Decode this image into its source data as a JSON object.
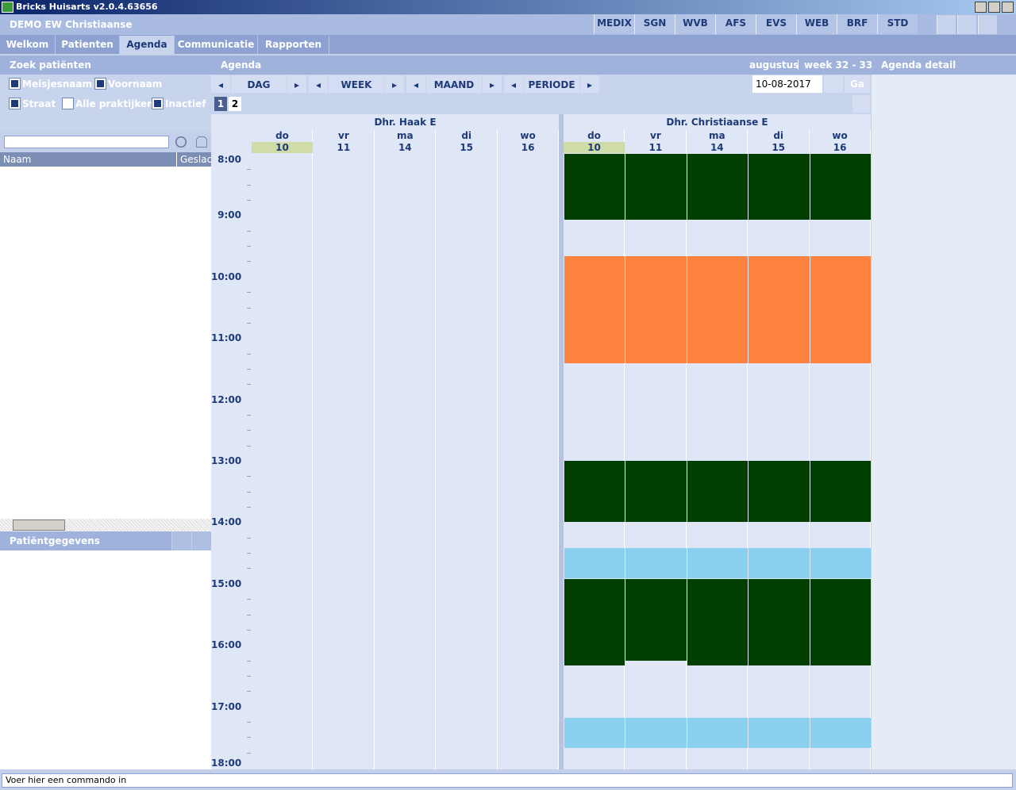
{
  "window": {
    "title": "Bricks Huisarts v2.0.4.63656"
  },
  "header": {
    "user": "DEMO  EW Christiaanse",
    "buttons": [
      "MEDIX",
      "SGN",
      "WVB",
      "AFS",
      "EVS",
      "WEB",
      "BRF",
      "STD"
    ]
  },
  "tabs": [
    "Welkom",
    "Patienten",
    "Agenda",
    "Communicatie",
    "Rapporten"
  ],
  "search": {
    "title": "Zoek patiënten",
    "options": [
      {
        "label": "Meisjesnaam",
        "checked": true
      },
      {
        "label": "Voornaam",
        "checked": true
      },
      {
        "label": "Straat",
        "checked": true
      },
      {
        "label": "Alle praktijken",
        "checked": false
      },
      {
        "label": "Inactief",
        "checked": true
      }
    ],
    "columns": [
      "Naam",
      "Geslac"
    ]
  },
  "patient": {
    "title": "Patiëntgegevens"
  },
  "agenda": {
    "title": "Agenda",
    "month": "augustus",
    "week": "week 32 - 33",
    "nav": [
      "DAG",
      "WEEK",
      "MAAND",
      "PERIODE"
    ],
    "date": "10-08-2017",
    "go": "Ga",
    "pages": [
      "1",
      "2"
    ],
    "doctors": [
      {
        "name": "Dhr. Haak E",
        "days": [
          {
            "day": "do",
            "date": 10
          },
          {
            "day": "vr",
            "date": 11
          },
          {
            "day": "ma",
            "date": 14
          },
          {
            "day": "di",
            "date": 15
          },
          {
            "day": "wo",
            "date": 16
          }
        ]
      },
      {
        "name": "Dhr. Christiaanse E",
        "days": [
          {
            "day": "do",
            "date": 10
          },
          {
            "day": "vr",
            "date": 11
          },
          {
            "day": "ma",
            "date": 14
          },
          {
            "day": "di",
            "date": 15
          },
          {
            "day": "wo",
            "date": 16
          }
        ]
      }
    ],
    "times": [
      "8:00",
      "9:00",
      "10:00",
      "11:00",
      "12:00",
      "13:00",
      "14:00",
      "15:00",
      "16:00",
      "17:00",
      "18:00"
    ]
  },
  "detail": {
    "title": "Agenda detail"
  },
  "command": {
    "placeholder": "Voer hier een commando in"
  }
}
